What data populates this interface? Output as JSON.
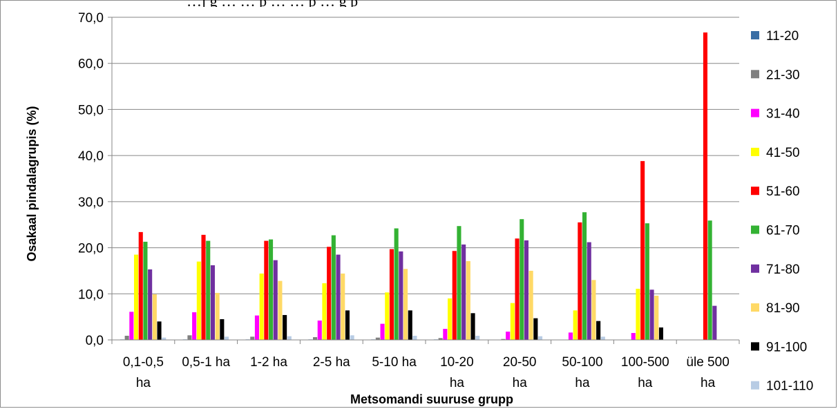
{
  "chart_data": {
    "type": "bar",
    "title_fragment": "…j g … … p … … p … g p",
    "xlabel": "Metsomandi suuruse grupp",
    "ylabel": "Osakaal pindalagrupis (%)",
    "ylim": [
      0,
      70
    ],
    "yticks": [
      "0,0",
      "10,0",
      "20,0",
      "30,0",
      "40,0",
      "50,0",
      "60,0",
      "70,0"
    ],
    "ytick_values": [
      0,
      10,
      20,
      30,
      40,
      50,
      60,
      70
    ],
    "grid": true,
    "legend_position": "right",
    "categories": [
      [
        "0,1-0,5",
        "ha"
      ],
      [
        "0,5-1 ha"
      ],
      [
        "1-2 ha"
      ],
      [
        "2-5 ha"
      ],
      [
        "5-10 ha"
      ],
      [
        "10-20",
        "ha"
      ],
      [
        "20-50",
        "ha"
      ],
      [
        "50-100",
        "ha"
      ],
      [
        "100-500",
        "ha"
      ],
      [
        "üle 500",
        "ha"
      ]
    ],
    "series": [
      {
        "name": "11-20",
        "color": "#3a6ea5",
        "values": [
          0.1,
          0.1,
          0.1,
          0.1,
          0.1,
          0.1,
          0,
          0,
          0,
          0
        ]
      },
      {
        "name": "21-30",
        "color": "#808080",
        "values": [
          0.9,
          1.0,
          0.7,
          0.6,
          0.5,
          0.4,
          0.2,
          0,
          0,
          0
        ]
      },
      {
        "name": "31-40",
        "color": "#ff00ff",
        "values": [
          6.1,
          6.0,
          5.3,
          4.2,
          3.5,
          2.4,
          1.8,
          1.6,
          1.5,
          0
        ]
      },
      {
        "name": "41-50",
        "color": "#ffff00",
        "values": [
          18.5,
          17.0,
          14.4,
          12.3,
          10.3,
          9.0,
          8.0,
          6.4,
          11.1,
          0
        ]
      },
      {
        "name": "51-60",
        "color": "#ff0000",
        "values": [
          23.4,
          22.8,
          21.5,
          20.2,
          19.7,
          19.3,
          22.0,
          25.5,
          38.8,
          66.7
        ]
      },
      {
        "name": "61-70",
        "color": "#33b233",
        "values": [
          21.3,
          21.5,
          21.8,
          22.7,
          24.2,
          24.7,
          26.2,
          27.7,
          25.3,
          25.9
        ]
      },
      {
        "name": "71-80",
        "color": "#7030a0",
        "values": [
          15.3,
          16.2,
          17.3,
          18.5,
          19.2,
          20.7,
          21.6,
          21.2,
          10.9,
          7.4
        ]
      },
      {
        "name": "81-90",
        "color": "#ffd966",
        "values": [
          9.9,
          10.2,
          12.8,
          14.4,
          15.4,
          17.1,
          15.0,
          13.0,
          9.6,
          0
        ]
      },
      {
        "name": "91-100",
        "color": "#000000",
        "values": [
          4.0,
          4.5,
          5.4,
          6.4,
          6.4,
          5.8,
          4.7,
          4.1,
          2.7,
          0
        ]
      },
      {
        "name": "101-110",
        "color": "#b8cce4",
        "values": [
          0.5,
          0.7,
          0.8,
          1.0,
          0.9,
          0.9,
          0.8,
          0.7,
          0,
          0
        ]
      }
    ]
  }
}
